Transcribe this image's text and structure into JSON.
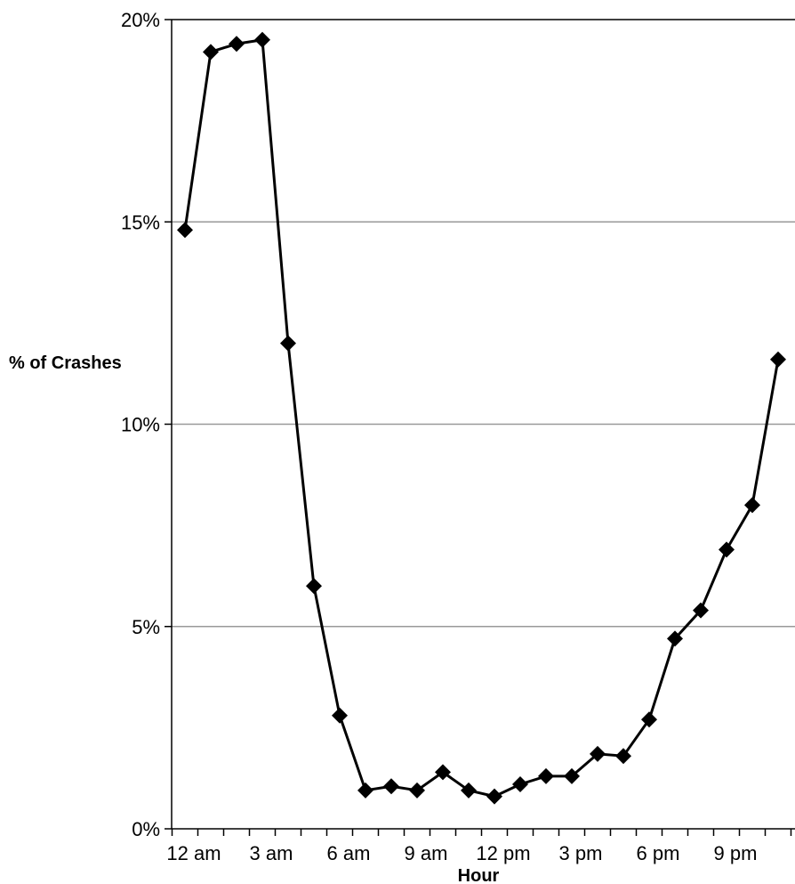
{
  "chart_data": {
    "type": "line",
    "title": "",
    "xlabel": "Hour",
    "ylabel": "% of Crashes",
    "x": [
      0,
      1,
      2,
      3,
      4,
      5,
      6,
      7,
      8,
      9,
      10,
      11,
      12,
      13,
      14,
      15,
      16,
      17,
      18,
      19,
      20,
      21,
      22,
      23
    ],
    "x_tick_labels": [
      "12 am",
      "3 am",
      "6 am",
      "9 am",
      "12 pm",
      "3 pm",
      "6 pm",
      "9 pm"
    ],
    "x_tick_positions": [
      0,
      3,
      6,
      9,
      12,
      15,
      18,
      21
    ],
    "series": [
      {
        "name": "",
        "values": [
          14.8,
          19.2,
          19.4,
          19.5,
          12.0,
          6.0,
          2.8,
          0.95,
          1.05,
          0.95,
          1.4,
          0.95,
          0.8,
          1.1,
          1.3,
          1.3,
          1.85,
          1.8,
          2.7,
          4.7,
          5.4,
          6.9,
          8.0,
          11.6
        ]
      }
    ],
    "ylim": [
      0,
      20
    ],
    "y_ticks": [
      0,
      5,
      10,
      15,
      20
    ],
    "y_tick_labels": [
      "0%",
      "5%",
      "10%",
      "15%",
      "20%"
    ],
    "grid": true,
    "legend": "none",
    "colors": {
      "line": "#000000",
      "marker": "#000000",
      "grid": "#999999",
      "axis": "#000000"
    },
    "marker": "diamond"
  }
}
